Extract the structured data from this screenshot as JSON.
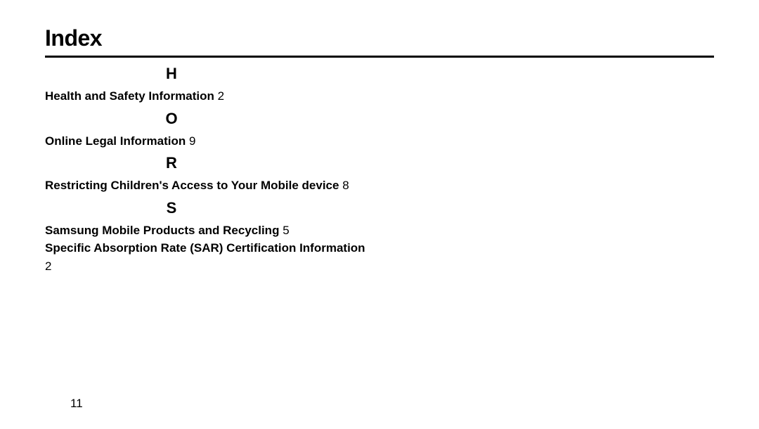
{
  "page": {
    "title": "Index",
    "number": "11",
    "background_color": "#ffffff",
    "text_color": "#000000",
    "title_fontsize": 32,
    "letter_fontsize": 22,
    "entry_fontsize": 17
  },
  "sections": {
    "H": {
      "letter": "H",
      "entries": [
        {
          "label": "Health and Safety Information",
          "page": "2",
          "newline": false
        }
      ]
    },
    "O": {
      "letter": "O",
      "entries": [
        {
          "label": "Online Legal Information",
          "page": "9",
          "newline": false
        }
      ]
    },
    "R": {
      "letter": "R",
      "entries": [
        {
          "label": "Restricting Children's Access to Your Mobile device",
          "page": "8",
          "newline": false
        }
      ]
    },
    "S": {
      "letter": "S",
      "entries": [
        {
          "label": "Samsung Mobile Products and Recycling",
          "page": "5",
          "newline": false
        },
        {
          "label": "Specific Absorption Rate (SAR) Certification Information",
          "page": "2",
          "newline": true
        }
      ]
    }
  }
}
